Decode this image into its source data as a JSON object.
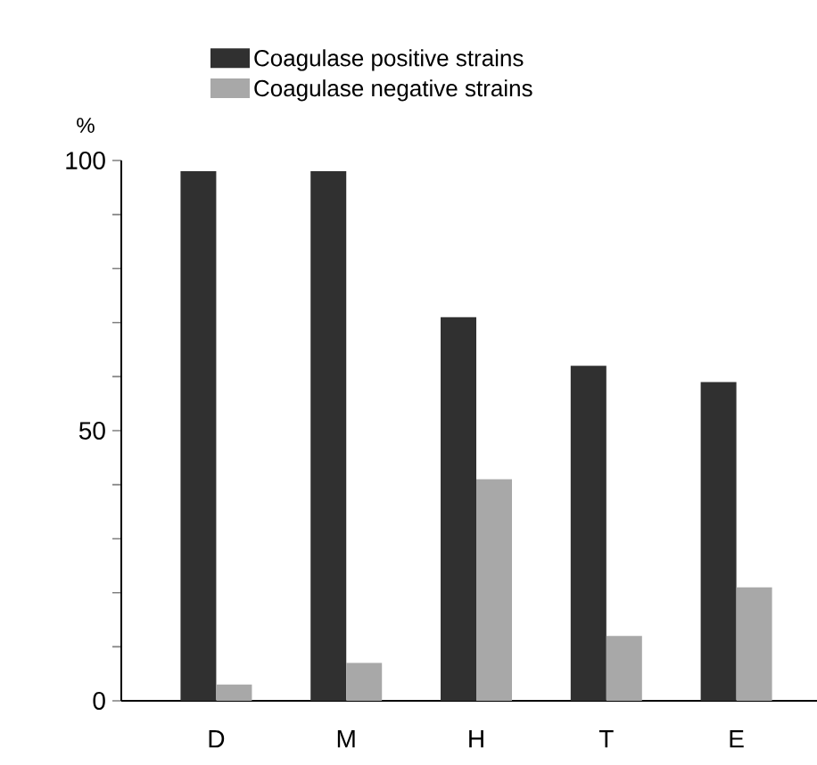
{
  "chart_data": {
    "type": "bar",
    "ylabel": "%",
    "categories": [
      "D",
      "M",
      "H",
      "T",
      "E"
    ],
    "series": [
      {
        "name": "Coagulase positive strains",
        "color": "#303030",
        "values": [
          98,
          98,
          71,
          62,
          59
        ]
      },
      {
        "name": "Coagulase negative strains",
        "color": "#a8a8a8",
        "values": [
          3,
          7,
          41,
          12,
          21
        ]
      }
    ],
    "ylim": [
      0,
      100
    ],
    "yticks": [
      0,
      {
        "value": 10,
        "label": null
      },
      {
        "value": 20,
        "label": null
      },
      {
        "value": 30,
        "label": null
      },
      {
        "value": 40,
        "label": null
      },
      50,
      {
        "value": 60,
        "label": null
      },
      {
        "value": 70,
        "label": null
      },
      {
        "value": 80,
        "label": null
      },
      {
        "value": 90,
        "label": null
      },
      100
    ],
    "legend": "top"
  }
}
